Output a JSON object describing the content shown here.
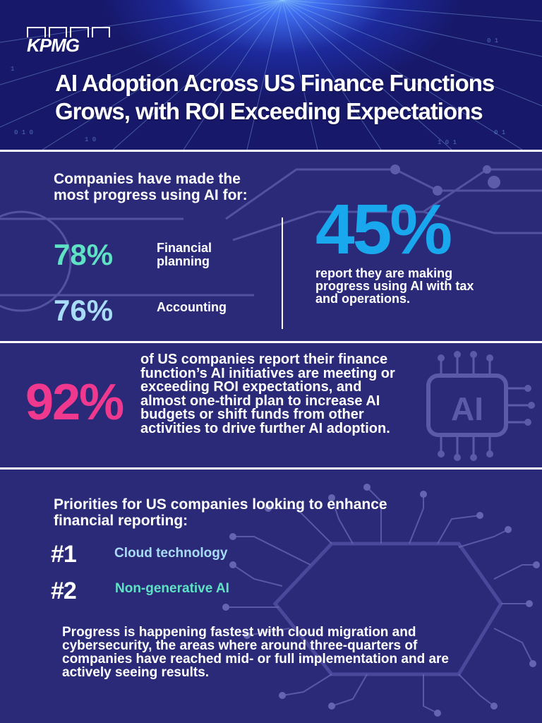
{
  "brand": {
    "logo_text": "KPMG"
  },
  "header": {
    "title": "AI Adoption Across US Finance Functions Grows, with ROI Exceeding Expectations"
  },
  "progress": {
    "intro": "Companies have made the most progress using AI for:",
    "items": [
      {
        "percent": "78%",
        "label": "Financial planning"
      },
      {
        "percent": "76%",
        "label": "Accounting"
      }
    ],
    "highlight": {
      "percent": "45%",
      "text": "report they are making progress using AI with tax and operations."
    }
  },
  "roi": {
    "percent": "92%",
    "text": "of US companies report their finance function’s AI initiatives are meeting or exceeding ROI expectations, and almost one-third plan to increase AI budgets or shift funds from other activities to drive further AI adoption.",
    "chip_label": "AI"
  },
  "priorities": {
    "title": "Priorities for US companies looking to enhance financial reporting:",
    "items": [
      {
        "rank": "#1",
        "label": "Cloud technology"
      },
      {
        "rank": "#2",
        "label": "Non-generative AI"
      }
    ],
    "footer": "Progress is happening fastest with cloud migration and cybersecurity, the areas where around three-quarters of companies have reached mid- or full implementation and are actively seeing results."
  },
  "colors": {
    "background": "#2b2a78",
    "teal": "#5fe2c4",
    "light_blue": "#a8dcf6",
    "blue": "#19a7ee",
    "pink": "#f0398e"
  }
}
